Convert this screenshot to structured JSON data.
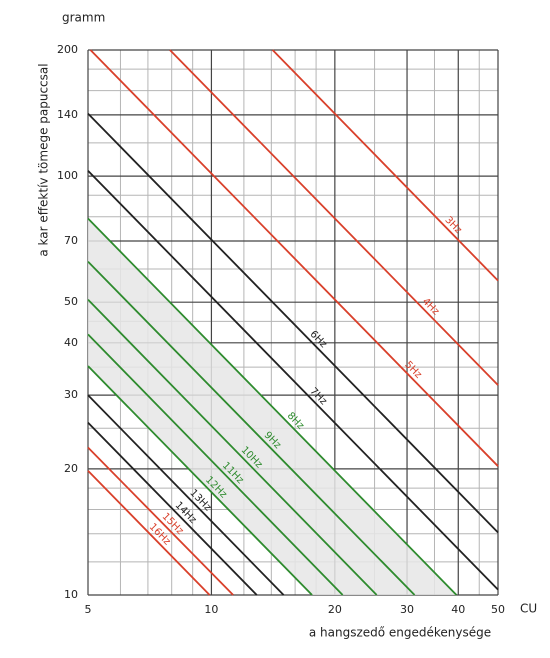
{
  "chart_data": {
    "type": "line",
    "title": "gramm",
    "y_label": "a kar effektív tömege papuccsal",
    "x_label": "a hangszedő engedékenysége",
    "x_unit": "CU",
    "log_x": true,
    "log_y": true,
    "grid": true,
    "xlim": [
      5,
      50
    ],
    "ylim": [
      10,
      200
    ],
    "xticks": [
      5,
      10,
      20,
      30,
      40,
      50
    ],
    "yticks": [
      10,
      20,
      30,
      40,
      50,
      70,
      100,
      140,
      200
    ],
    "x_minor_grid": [
      6,
      7,
      8,
      9,
      12,
      14,
      16,
      18,
      25,
      35,
      45
    ],
    "y_minor_grid": [
      12,
      14,
      16,
      18,
      25,
      35,
      45,
      60,
      80,
      90,
      120,
      160,
      180
    ],
    "series": [
      {
        "name": "3Hz",
        "color": "#d9402b",
        "x": [
          14.1,
          50
        ],
        "values": [
          200,
          56.3
        ]
      },
      {
        "name": "4Hz",
        "color": "#d9402b",
        "x": [
          7.92,
          50
        ],
        "values": [
          200,
          31.7
        ]
      },
      {
        "name": "5Hz",
        "color": "#d9402b",
        "x": [
          5.07,
          50
        ],
        "values": [
          200,
          20.3
        ]
      },
      {
        "name": "6Hz",
        "color": "#222222",
        "x": [
          5,
          50
        ],
        "values": [
          141,
          14.1
        ]
      },
      {
        "name": "7Hz",
        "color": "#222222",
        "x": [
          5,
          50
        ],
        "values": [
          103,
          10.3
        ]
      },
      {
        "name": "8Hz",
        "color": "#2e8b2e",
        "x": [
          5,
          39.6
        ],
        "values": [
          79.2,
          10
        ]
      },
      {
        "name": "9Hz",
        "color": "#2e8b2e",
        "x": [
          5,
          31.3
        ],
        "values": [
          62.5,
          10
        ]
      },
      {
        "name": "10Hz",
        "color": "#2e8b2e",
        "x": [
          5,
          25.3
        ],
        "values": [
          50.7,
          10
        ]
      },
      {
        "name": "11Hz",
        "color": "#2e8b2e",
        "x": [
          5,
          20.9
        ],
        "values": [
          41.9,
          10
        ]
      },
      {
        "name": "12Hz",
        "color": "#2e8b2e",
        "x": [
          5,
          17.6
        ],
        "values": [
          35.2,
          10
        ]
      },
      {
        "name": "13Hz",
        "color": "#222222",
        "x": [
          5,
          15
        ],
        "values": [
          30,
          10
        ]
      },
      {
        "name": "14Hz",
        "color": "#222222",
        "x": [
          5,
          12.9
        ],
        "values": [
          25.8,
          10
        ]
      },
      {
        "name": "15Hz",
        "color": "#d9402b",
        "x": [
          5,
          11.3
        ],
        "values": [
          22.5,
          10
        ]
      },
      {
        "name": "16Hz",
        "color": "#d9402b",
        "x": [
          5,
          9.9
        ],
        "values": [
          19.8,
          10
        ]
      }
    ]
  }
}
